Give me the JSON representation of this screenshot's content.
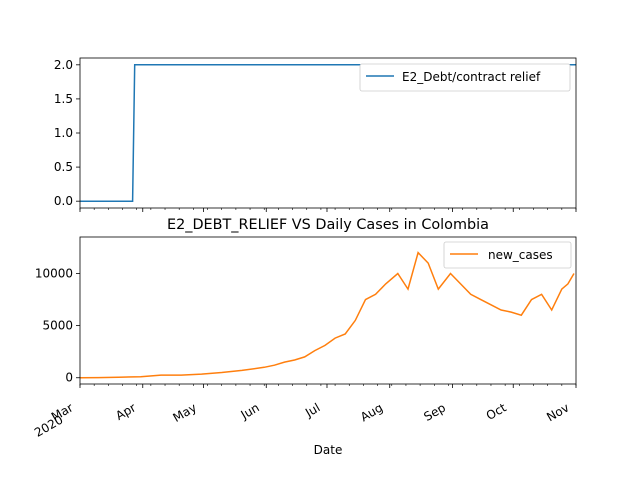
{
  "chart_data": [
    {
      "type": "line",
      "title": "",
      "xlabel": "",
      "ylabel": "",
      "xlim": [
        "2020-03-01",
        "2020-11-01"
      ],
      "ylim": [
        -0.1,
        2.1
      ],
      "yticks": [
        0.0,
        0.5,
        1.0,
        1.5,
        2.0
      ],
      "ytick_labels": [
        "0.0",
        "0.5",
        "1.0",
        "1.5",
        "2.0"
      ],
      "grid": false,
      "legend_position": "top-right",
      "series": [
        {
          "name": "E2_Debt/contract relief",
          "color": "#1f77b4",
          "x": [
            "2020-03-01",
            "2020-03-27",
            "2020-03-28",
            "2020-11-01"
          ],
          "y": [
            0,
            0,
            2,
            2
          ]
        }
      ]
    },
    {
      "type": "line",
      "title": "E2_DEBT_RELIEF VS Daily Cases in Colombia",
      "xlabel": "Date",
      "ylabel": "",
      "xlim": [
        "2020-03-01",
        "2020-11-01"
      ],
      "ylim": [
        -600,
        13500
      ],
      "yticks": [
        0,
        5000,
        10000
      ],
      "ytick_labels": [
        "0",
        "5000",
        "10000"
      ],
      "xticks": [
        "2020-03-01",
        "2020-04-01",
        "2020-05-01",
        "2020-06-01",
        "2020-07-01",
        "2020-08-01",
        "2020-09-01",
        "2020-10-01",
        "2020-11-01"
      ],
      "xtick_labels": [
        [
          "Mar",
          "2020"
        ],
        [
          "Apr"
        ],
        [
          "May"
        ],
        [
          "Jun"
        ],
        [
          "Jul"
        ],
        [
          "Aug"
        ],
        [
          "Sep"
        ],
        [
          "Oct"
        ],
        [
          "Nov"
        ]
      ],
      "grid": false,
      "legend_position": "top-right",
      "series": [
        {
          "name": "new_cases",
          "color": "#ff7f0e",
          "x": [
            "2020-03-01",
            "2020-03-10",
            "2020-03-20",
            "2020-03-31",
            "2020-04-10",
            "2020-04-20",
            "2020-04-30",
            "2020-05-10",
            "2020-05-20",
            "2020-05-31",
            "2020-06-05",
            "2020-06-10",
            "2020-06-15",
            "2020-06-20",
            "2020-06-25",
            "2020-06-30",
            "2020-07-05",
            "2020-07-10",
            "2020-07-15",
            "2020-07-20",
            "2020-07-25",
            "2020-07-30",
            "2020-08-05",
            "2020-08-10",
            "2020-08-15",
            "2020-08-20",
            "2020-08-25",
            "2020-08-31",
            "2020-09-05",
            "2020-09-10",
            "2020-09-15",
            "2020-09-20",
            "2020-09-25",
            "2020-09-30",
            "2020-10-05",
            "2020-10-10",
            "2020-10-15",
            "2020-10-20",
            "2020-10-25",
            "2020-10-28",
            "2020-10-31"
          ],
          "y": [
            0,
            10,
            50,
            100,
            250,
            250,
            350,
            500,
            700,
            1000,
            1200,
            1500,
            1700,
            2000,
            2600,
            3100,
            3800,
            4200,
            5500,
            7500,
            8000,
            9000,
            10000,
            8500,
            12000,
            11000,
            8500,
            10000,
            9000,
            8000,
            7500,
            7000,
            6500,
            6300,
            6000,
            7500,
            8000,
            6500,
            8500,
            9000,
            10000
          ]
        }
      ]
    }
  ]
}
